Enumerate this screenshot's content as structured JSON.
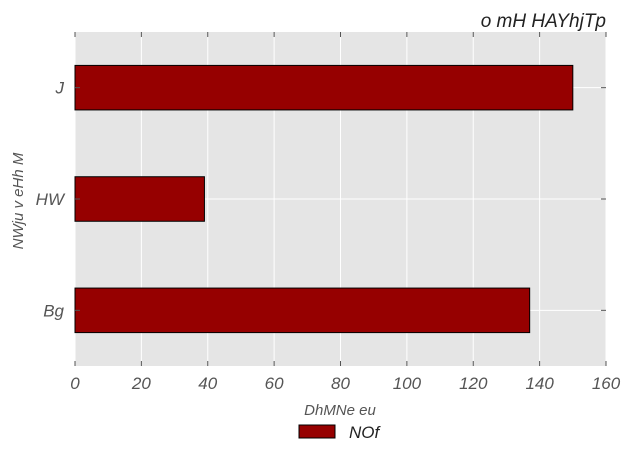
{
  "chart_data": {
    "type": "bar",
    "orientation": "horizontal",
    "title": "o mH  HAYhjTp",
    "xlabel": "DhMNe eu",
    "ylabel": "NWju v eHh M",
    "categories": [
      "J",
      "HW",
      "Bg"
    ],
    "series": [
      {
        "name": "NOf",
        "values": [
          150,
          39,
          137
        ],
        "color": "#960000"
      }
    ],
    "xlim": [
      0,
      160
    ],
    "xticks": [
      0,
      20,
      40,
      60,
      80,
      100,
      120,
      140,
      160
    ],
    "grid": true,
    "legend_position": "bottom-center",
    "background_color": "#e5e5e5",
    "grid_color": "#ffffff"
  }
}
